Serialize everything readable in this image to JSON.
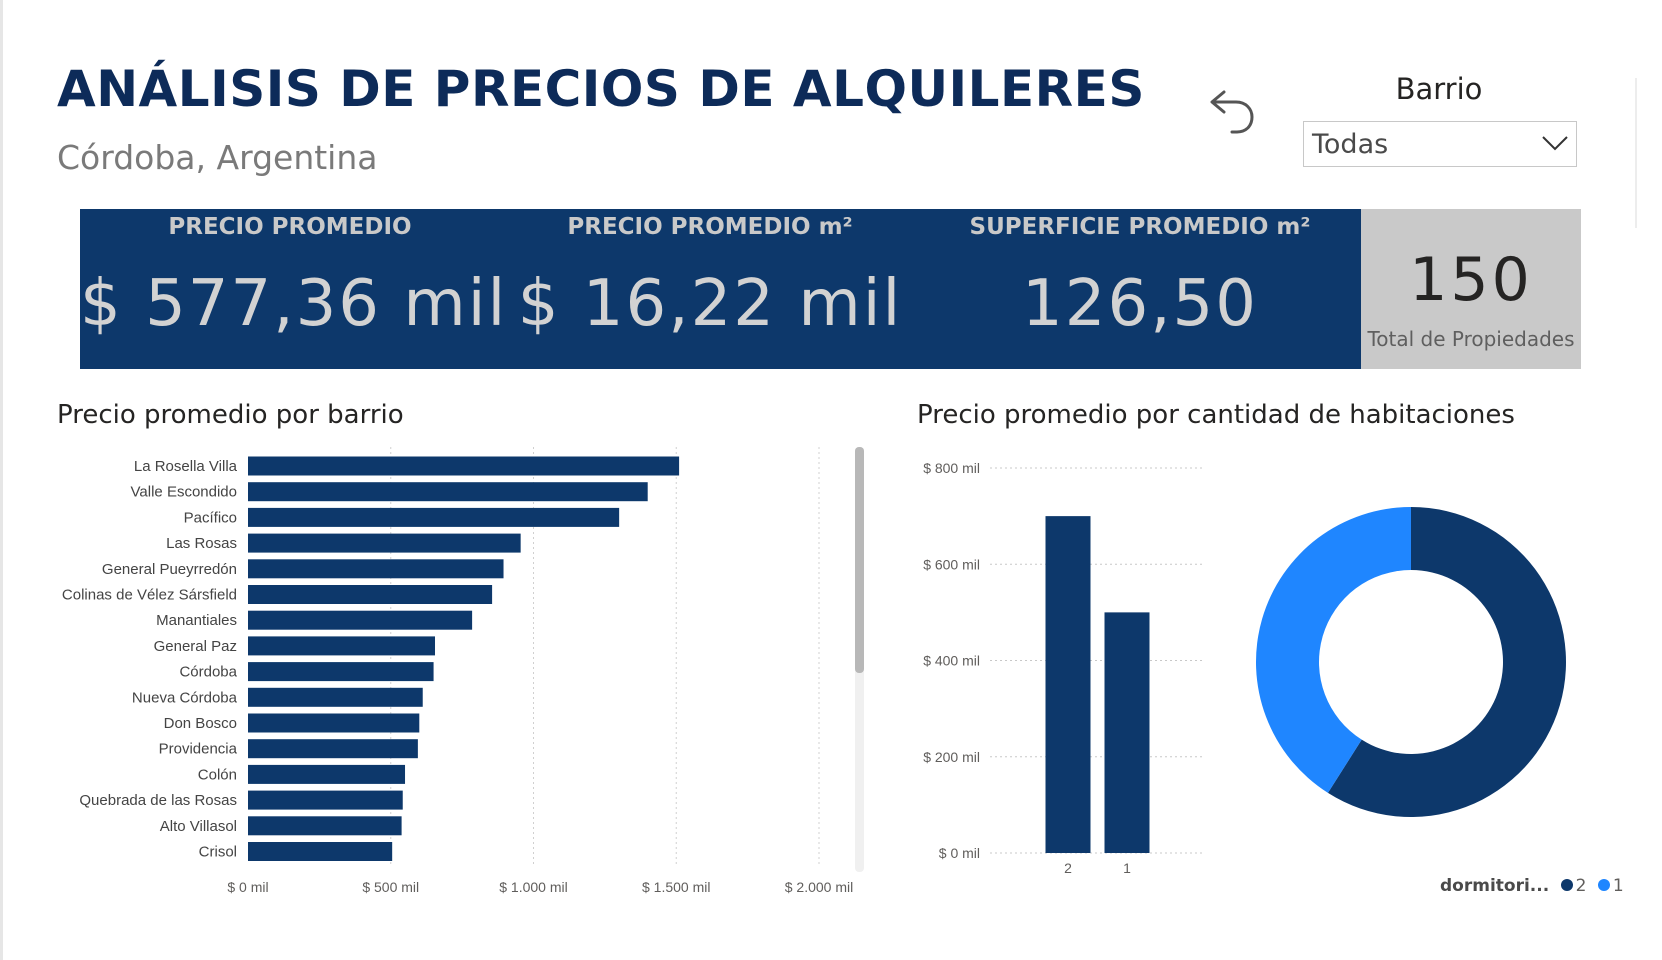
{
  "header": {
    "title": "ANÁLISIS DE PRECIOS DE ALQUILERES",
    "subtitle": "Córdoba, Argentina"
  },
  "slicer": {
    "label": "Barrio",
    "value": "Todas"
  },
  "kpis": [
    {
      "label": "PRECIO PROMEDIO",
      "value": "$ 577,36 mil"
    },
    {
      "label": "PRECIO PROMEDIO m²",
      "value": "$ 16,22 mil"
    },
    {
      "label": "SUPERFICIE PROMEDIO m²",
      "value": "126,50"
    }
  ],
  "total_card": {
    "value": "150",
    "label": "Total de Propiedades"
  },
  "colors": {
    "navy": "#0d386b",
    "title": "#0d2b59",
    "light_blue": "#1f86ff"
  },
  "chart_data": [
    {
      "type": "bar",
      "orientation": "horizontal",
      "title": "Precio promedio por barrio",
      "categories": [
        "La Rosella Villa",
        "Valle Escondido",
        "Pacífico",
        "Las Rosas",
        "General Pueyrredón",
        "Colinas de Vélez Sársfield",
        "Manantiales",
        "General Paz",
        "Córdoba",
        "Nueva Córdoba",
        "Don Bosco",
        "Providencia",
        "Colón",
        "Quebrada de las Rosas",
        "Alto Villasol",
        "Crisol"
      ],
      "values": [
        1510,
        1400,
        1300,
        955,
        895,
        855,
        785,
        655,
        650,
        612,
        600,
        595,
        550,
        542,
        538,
        505
      ],
      "xlim": [
        0,
        2000
      ],
      "ticks": [
        0,
        500,
        1000,
        1500,
        2000
      ],
      "tick_labels": [
        "$ 0 mil",
        "$ 500 mil",
        "$ 1.000 mil",
        "$ 1.500 mil",
        "$ 2.000 mil"
      ],
      "grid": true,
      "scrollbar": true
    },
    {
      "type": "bar",
      "title": "Precio promedio por cantidad de habitaciones",
      "categories": [
        "2",
        "1"
      ],
      "values": [
        700,
        500
      ],
      "ylim": [
        0,
        800
      ],
      "ticks": [
        0,
        200,
        400,
        600,
        800
      ],
      "tick_labels": [
        "$ 0 mil",
        "$ 200 mil",
        "$ 400 mil",
        "$ 600 mil",
        "$ 800 mil"
      ],
      "grid": true
    },
    {
      "type": "pie",
      "donut": true,
      "legend_title": "dormitori...",
      "labels": [
        "2",
        "1"
      ],
      "values": [
        0.59,
        0.41
      ],
      "colors": [
        "#0d386b",
        "#1f86ff"
      ],
      "legend_position": "bottom-right"
    }
  ]
}
